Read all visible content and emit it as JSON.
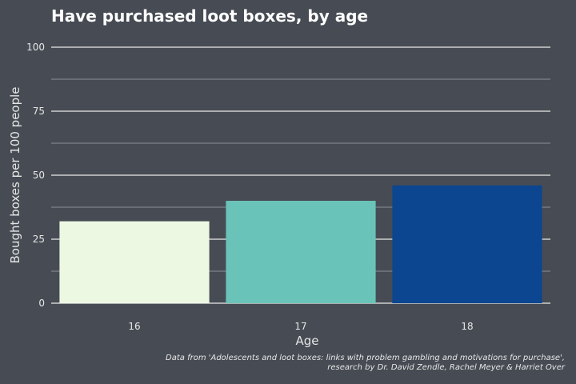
{
  "chart_data": {
    "type": "bar",
    "title": "Have purchased loot boxes, by age",
    "xlabel": "Age",
    "ylabel": "Bought boxes per 100 people",
    "categories": [
      "16",
      "17",
      "18"
    ],
    "values": [
      32,
      40,
      46
    ],
    "ylim": [
      0,
      100
    ],
    "yticks": [
      0,
      25,
      50,
      75,
      100
    ],
    "grid": true,
    "legend": "none",
    "colors": [
      "#edf8e3",
      "#69c3b8",
      "#0c4590"
    ],
    "background": "#474c54"
  },
  "source": {
    "line1": "Data from 'Adolescents and loot boxes: links with problem gambling and motivations for purchase',",
    "line2": "research by Dr. David Zendle, Rachel Meyer & Harriet Over"
  }
}
